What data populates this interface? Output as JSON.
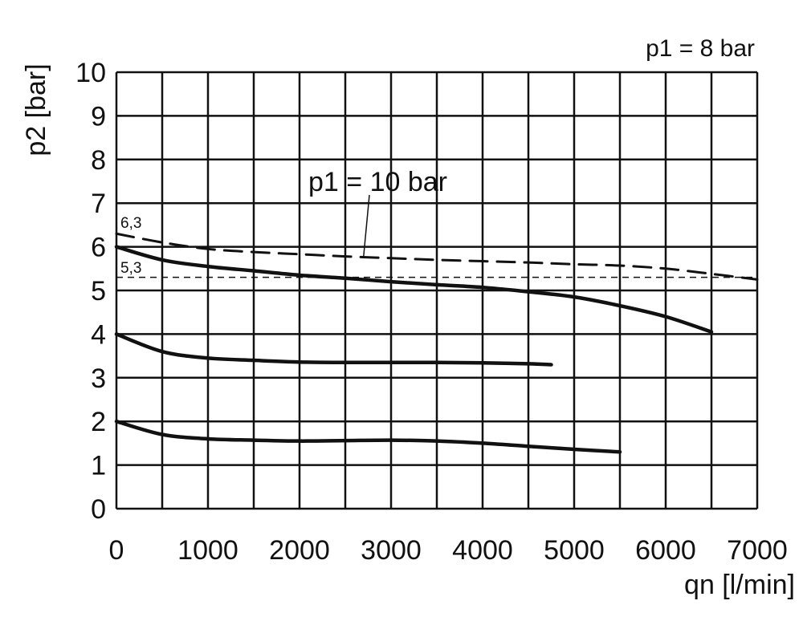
{
  "chart_data": {
    "type": "line",
    "title": "p1 = 8 bar",
    "xlabel": "qn [l/min]",
    "ylabel": "p2 [bar]",
    "xlim": [
      0,
      7000
    ],
    "ylim": [
      0,
      10
    ],
    "x_ticks": [
      "0",
      "1000",
      "2000",
      "3000",
      "4000",
      "5000",
      "6000",
      "7000"
    ],
    "y_ticks": [
      "0",
      "1",
      "2",
      "3",
      "4",
      "5",
      "6",
      "7",
      "8",
      "9",
      "10"
    ],
    "grid": true,
    "x_grid_step": 500,
    "y_grid_step": 1,
    "series": [
      {
        "style": "solid",
        "color": "#111111",
        "x": [
          0,
          500,
          1000,
          1500,
          2000,
          2500,
          3000,
          3500,
          4000,
          4500,
          5000,
          5500,
          6000,
          6500
        ],
        "y": [
          6.0,
          5.7,
          5.55,
          5.45,
          5.35,
          5.28,
          5.2,
          5.13,
          5.07,
          4.97,
          4.85,
          4.65,
          4.4,
          4.05
        ]
      },
      {
        "style": "solid",
        "color": "#111111",
        "x": [
          0,
          500,
          1000,
          1500,
          2000,
          2500,
          3000,
          3500,
          4000,
          4500,
          4750
        ],
        "y": [
          4.0,
          3.6,
          3.45,
          3.4,
          3.36,
          3.35,
          3.35,
          3.35,
          3.34,
          3.32,
          3.3
        ]
      },
      {
        "style": "solid",
        "color": "#111111",
        "x": [
          0,
          500,
          1000,
          1500,
          2000,
          2500,
          3000,
          3500,
          4000,
          4500,
          5000,
          5500
        ],
        "y": [
          2.0,
          1.7,
          1.6,
          1.57,
          1.55,
          1.56,
          1.57,
          1.55,
          1.5,
          1.43,
          1.36,
          1.3
        ]
      },
      {
        "name": "p1 = 10 bar",
        "style": "dashed",
        "color": "#111111",
        "x": [
          0,
          500,
          1000,
          1500,
          2000,
          2500,
          3000,
          3500,
          4000,
          4500,
          5000,
          5500,
          6000,
          6500,
          7000
        ],
        "y": [
          6.3,
          6.1,
          5.95,
          5.88,
          5.83,
          5.78,
          5.74,
          5.7,
          5.67,
          5.64,
          5.6,
          5.57,
          5.5,
          5.38,
          5.25
        ]
      }
    ],
    "reference_lines": [
      {
        "y": 5.3,
        "style": "thin-dashed"
      }
    ],
    "annotations": [
      {
        "text": "6,3",
        "y": 6.3
      },
      {
        "text": "5,3",
        "y": 5.3
      },
      {
        "text": "p1 = 10 bar",
        "points_to_x": 2700,
        "points_to_y": 5.78
      }
    ]
  }
}
